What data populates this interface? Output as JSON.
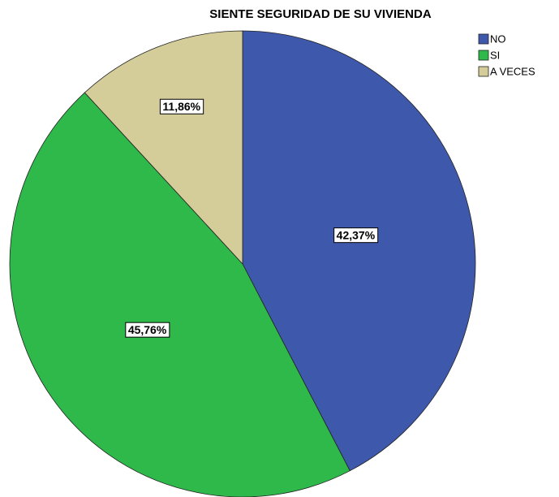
{
  "chart_data": {
    "type": "pie",
    "title": "SIENTE SEGURIDAD DE SU VIVIENDA",
    "categories": [
      "NO",
      "SI",
      "A VECES"
    ],
    "values": [
      42.37,
      45.76,
      11.86
    ],
    "value_labels": [
      "42,37%",
      "45,76%",
      "11,86%"
    ],
    "colors": [
      "#3e58ac",
      "#2fb94b",
      "#d4cd9a"
    ],
    "legend": "top-right"
  }
}
